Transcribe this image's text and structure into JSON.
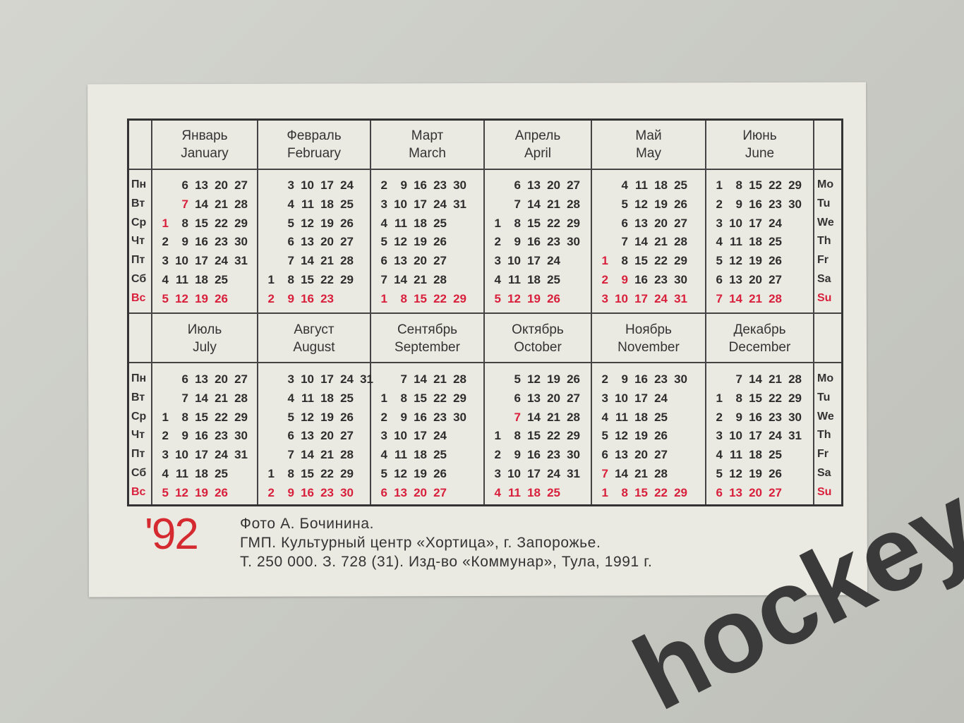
{
  "colors": {
    "holiday": "#d8203c",
    "text": "#2d2d2d",
    "year": "#d42a30",
    "watermark": "#3a3a3a"
  },
  "weekdays_ru": [
    "Пн",
    "Вт",
    "Ср",
    "Чт",
    "Пт",
    "Сб",
    "Вс"
  ],
  "weekdays_en": [
    "Mo",
    "Tu",
    "We",
    "Th",
    "Fr",
    "Sa",
    "Su"
  ],
  "months": [
    {
      "ru": "Январь",
      "en": "January",
      "red": [
        1,
        7
      ],
      "rows": [
        [
          null,
          6,
          13,
          20,
          27
        ],
        [
          null,
          7,
          14,
          21,
          28
        ],
        [
          1,
          8,
          15,
          22,
          29
        ],
        [
          2,
          9,
          16,
          23,
          30
        ],
        [
          3,
          10,
          17,
          24,
          31
        ],
        [
          4,
          11,
          18,
          25
        ],
        [
          5,
          12,
          19,
          26
        ]
      ]
    },
    {
      "ru": "Февраль",
      "en": "February",
      "red": [],
      "rows": [
        [
          null,
          3,
          10,
          17,
          24
        ],
        [
          null,
          4,
          11,
          18,
          25
        ],
        [
          null,
          5,
          12,
          19,
          26
        ],
        [
          null,
          6,
          13,
          20,
          27
        ],
        [
          null,
          7,
          14,
          21,
          28
        ],
        [
          1,
          8,
          15,
          22,
          29
        ],
        [
          2,
          9,
          16,
          23
        ]
      ]
    },
    {
      "ru": "Март",
      "en": "March",
      "red": [],
      "rows": [
        [
          2,
          9,
          16,
          23,
          30
        ],
        [
          3,
          10,
          17,
          24,
          31
        ],
        [
          4,
          11,
          18,
          25
        ],
        [
          5,
          12,
          19,
          26
        ],
        [
          6,
          13,
          20,
          27
        ],
        [
          7,
          14,
          21,
          28
        ],
        [
          1,
          8,
          15,
          22,
          29
        ]
      ]
    },
    {
      "ru": "Апрель",
      "en": "April",
      "red": [],
      "rows": [
        [
          null,
          6,
          13,
          20,
          27
        ],
        [
          null,
          7,
          14,
          21,
          28
        ],
        [
          1,
          8,
          15,
          22,
          29
        ],
        [
          2,
          9,
          16,
          23,
          30
        ],
        [
          3,
          10,
          17,
          24
        ],
        [
          4,
          11,
          18,
          25
        ],
        [
          5,
          12,
          19,
          26
        ]
      ]
    },
    {
      "ru": "Май",
      "en": "May",
      "red": [
        1,
        2,
        9
      ],
      "rows": [
        [
          null,
          4,
          11,
          18,
          25
        ],
        [
          null,
          5,
          12,
          19,
          26
        ],
        [
          null,
          6,
          13,
          20,
          27
        ],
        [
          null,
          7,
          14,
          21,
          28
        ],
        [
          1,
          8,
          15,
          22,
          29
        ],
        [
          2,
          9,
          16,
          23,
          30
        ],
        [
          3,
          10,
          17,
          24,
          31
        ]
      ]
    },
    {
      "ru": "Июнь",
      "en": "June",
      "red": [],
      "rows": [
        [
          1,
          8,
          15,
          22,
          29
        ],
        [
          2,
          9,
          16,
          23,
          30
        ],
        [
          3,
          10,
          17,
          24
        ],
        [
          4,
          11,
          18,
          25
        ],
        [
          5,
          12,
          19,
          26
        ],
        [
          6,
          13,
          20,
          27
        ],
        [
          7,
          14,
          21,
          28
        ]
      ]
    },
    {
      "ru": "Июль",
      "en": "July",
      "red": [],
      "rows": [
        [
          null,
          6,
          13,
          20,
          27
        ],
        [
          null,
          7,
          14,
          21,
          28
        ],
        [
          1,
          8,
          15,
          22,
          29
        ],
        [
          2,
          9,
          16,
          23,
          30
        ],
        [
          3,
          10,
          17,
          24,
          31
        ],
        [
          4,
          11,
          18,
          25
        ],
        [
          5,
          12,
          19,
          26
        ]
      ]
    },
    {
      "ru": "Август",
      "en": "August",
      "red": [],
      "rows": [
        [
          null,
          3,
          10,
          17,
          24,
          31
        ],
        [
          null,
          4,
          11,
          18,
          25
        ],
        [
          null,
          5,
          12,
          19,
          26
        ],
        [
          null,
          6,
          13,
          20,
          27
        ],
        [
          null,
          7,
          14,
          21,
          28
        ],
        [
          1,
          8,
          15,
          22,
          29
        ],
        [
          2,
          9,
          16,
          23,
          30
        ]
      ]
    },
    {
      "ru": "Сентябрь",
      "en": "September",
      "red": [],
      "rows": [
        [
          null,
          7,
          14,
          21,
          28
        ],
        [
          1,
          8,
          15,
          22,
          29
        ],
        [
          2,
          9,
          16,
          23,
          30
        ],
        [
          3,
          10,
          17,
          24
        ],
        [
          4,
          11,
          18,
          25
        ],
        [
          5,
          12,
          19,
          26
        ],
        [
          6,
          13,
          20,
          27
        ]
      ]
    },
    {
      "ru": "Октябрь",
      "en": "October",
      "red": [
        7
      ],
      "rows": [
        [
          null,
          5,
          12,
          19,
          26
        ],
        [
          null,
          6,
          13,
          20,
          27
        ],
        [
          null,
          7,
          14,
          21,
          28
        ],
        [
          1,
          8,
          15,
          22,
          29
        ],
        [
          2,
          9,
          16,
          23,
          30
        ],
        [
          3,
          10,
          17,
          24,
          31
        ],
        [
          4,
          11,
          18,
          25
        ]
      ]
    },
    {
      "ru": "Ноябрь",
      "en": "November",
      "red": [
        7
      ],
      "rows": [
        [
          2,
          9,
          16,
          23,
          30
        ],
        [
          3,
          10,
          17,
          24
        ],
        [
          4,
          11,
          18,
          25
        ],
        [
          5,
          12,
          19,
          26
        ],
        [
          6,
          13,
          20,
          27
        ],
        [
          7,
          14,
          21,
          28
        ],
        [
          1,
          8,
          15,
          22,
          29
        ]
      ]
    },
    {
      "ru": "Декабрь",
      "en": "December",
      "red": [],
      "rows": [
        [
          null,
          7,
          14,
          21,
          28
        ],
        [
          1,
          8,
          15,
          22,
          29
        ],
        [
          2,
          9,
          16,
          23,
          30
        ],
        [
          3,
          10,
          17,
          24,
          31
        ],
        [
          4,
          11,
          18,
          25
        ],
        [
          5,
          12,
          19,
          26
        ],
        [
          6,
          13,
          20,
          27
        ]
      ]
    }
  ],
  "footer": {
    "year": "'92",
    "line1": "Фото А. Бочинина.",
    "line2": "ГМП. Культурный центр «Хортица», г. Запорожье.",
    "line3": "Т. 250 000. З. 728 (31). Изд-во «Коммунар», Тула, 1991 г."
  },
  "watermark": "hockey"
}
